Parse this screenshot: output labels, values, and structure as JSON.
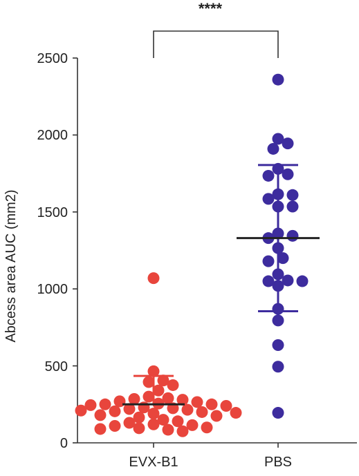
{
  "chart_data": {
    "type": "scatter",
    "ylabel": "Abcess area AUC (mm2)",
    "ylim": [
      0,
      2500
    ],
    "yticks": [
      0,
      500,
      1000,
      1500,
      2000,
      2500
    ],
    "categories": [
      "EVX-B1",
      "PBS"
    ],
    "significance": "****",
    "grid": false,
    "series": [
      {
        "category": "EVX-B1",
        "color": "#E8453C",
        "mean": 250,
        "error_upper": 435,
        "values": [
          1070,
          465,
          405,
          395,
          375,
          340,
          300,
          290,
          285,
          280,
          270,
          265,
          255,
          250,
          250,
          245,
          240,
          230,
          225,
          220,
          215,
          210,
          205,
          200,
          195,
          190,
          180,
          175,
          165,
          150,
          140,
          130,
          120,
          115,
          110,
          100,
          95,
          90,
          85,
          75
        ]
      },
      {
        "category": "PBS",
        "color": "#3D2C9E",
        "mean": 1330,
        "error_upper": 1805,
        "error_lower": 855,
        "values": [
          2360,
          1975,
          1945,
          1910,
          1780,
          1745,
          1735,
          1610,
          1615,
          1585,
          1535,
          1535,
          1360,
          1345,
          1330,
          1265,
          1200,
          1180,
          1095,
          1055,
          1050,
          1050,
          1020,
          870,
          795,
          635,
          495,
          195
        ]
      }
    ]
  }
}
